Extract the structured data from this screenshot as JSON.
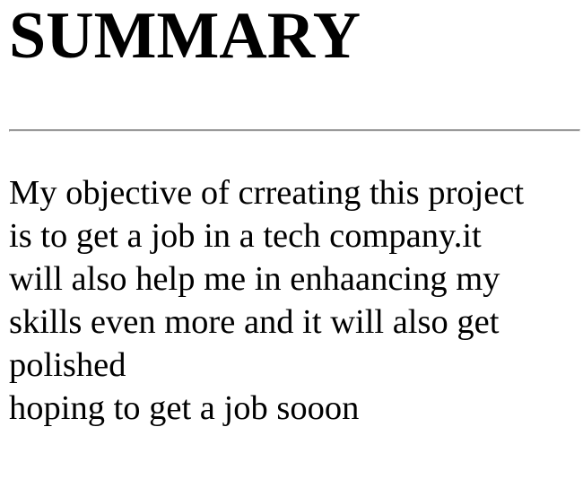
{
  "heading": "SUMMARY",
  "body": {
    "lines": [
      "My objective of crreating this project",
      "is to get a job in a tech company.it",
      "will also help me in enhaancing my",
      "skills even more and it will also get",
      "polished",
      "hoping to get a job sooon"
    ]
  },
  "colors": {
    "text": "#000000",
    "divider": "#9a9a9a",
    "background": "#ffffff"
  }
}
